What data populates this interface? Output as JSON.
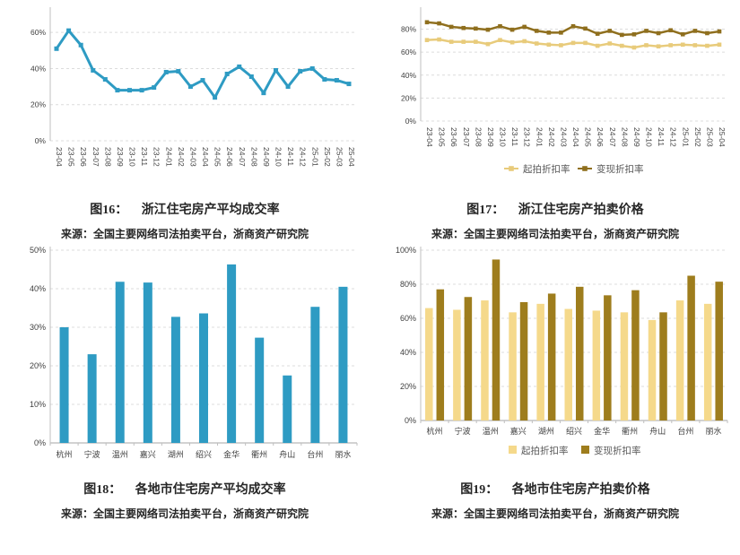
{
  "figures": [
    {
      "caption_label": "图16：",
      "caption_title": "浙江住宅房产平均成交率",
      "source": "来源：全国主要网络司法拍卖平台，浙商资产研究院"
    },
    {
      "caption_label": "图17：",
      "caption_title": "浙江住宅房产拍卖价格",
      "source": "来源：全国主要网络司法拍卖平台，浙商资产研究院"
    },
    {
      "caption_label": "图18：",
      "caption_title": "各地市住宅房产平均成交率",
      "source": "来源：全国主要网络司法拍卖平台，浙商资产研究院"
    },
    {
      "caption_label": "图19：",
      "caption_title": "各地市住宅房产拍卖价格",
      "source": "来源：全国主要网络司法拍卖平台，浙商资产研究院"
    }
  ],
  "colors": {
    "teal": "#2E9BC3",
    "light_gold_line": "#E8CB7B",
    "dark_gold_line": "#8F6F1E",
    "light_gold_bar": "#F5D98B",
    "dark_gold_bar": "#9E7D1D",
    "gridline": "#DCDCDC",
    "axis": "#BFBFBF",
    "tick_text": "#404040",
    "legend_text": "#595959"
  },
  "chart_data": [
    {
      "type": "line",
      "title": "浙江住宅房产平均成交率",
      "x": [
        "23-04",
        "23-05",
        "23-06",
        "23-07",
        "23-08",
        "23-09",
        "23-10",
        "23-11",
        "23-12",
        "24-01",
        "24-02",
        "24-03",
        "24-04",
        "24-05",
        "24-06",
        "24-07",
        "24-08",
        "24-09",
        "24-10",
        "24-11",
        "24-12",
        "25-01",
        "25-02",
        "25-03",
        "25-04"
      ],
      "series": [
        {
          "name": "平均成交率",
          "color": "#2E9BC3",
          "values": [
            51,
            61,
            53,
            39,
            34,
            28,
            28,
            28,
            29.5,
            38,
            38.5,
            30,
            33.5,
            24,
            37,
            41,
            35.5,
            26.5,
            39,
            30,
            38.5,
            40,
            34,
            33.5,
            31.5
          ]
        }
      ],
      "ylabel": "",
      "xlabel": "",
      "ylim": [
        0,
        72
      ],
      "yticks": [
        0,
        20,
        40,
        60
      ],
      "grid": true,
      "legend": false
    },
    {
      "type": "line",
      "title": "浙江住宅房产拍卖价格",
      "x": [
        "23-04",
        "23-05",
        "23-06",
        "23-07",
        "23-08",
        "23-09",
        "23-10",
        "23-11",
        "23-12",
        "24-01",
        "24-02",
        "24-03",
        "24-04",
        "24-05",
        "24-06",
        "24-07",
        "24-08",
        "24-09",
        "24-10",
        "24-11",
        "24-12",
        "25-01",
        "25-02",
        "25-03",
        "25-04"
      ],
      "series": [
        {
          "name": "起拍折扣率",
          "color": "#E8CB7B",
          "values": [
            70.5,
            71,
            69,
            69,
            69,
            67,
            70.5,
            68.5,
            69.5,
            67.5,
            66.5,
            66,
            68,
            68,
            65.5,
            67.5,
            65.5,
            64,
            66,
            65,
            66,
            66.5,
            66,
            65.5,
            66.5
          ]
        },
        {
          "name": "变现折扣率",
          "color": "#8F6F1E",
          "values": [
            86,
            85,
            82,
            81,
            80.5,
            79.5,
            82.5,
            79.5,
            82,
            78.5,
            77,
            77,
            82.5,
            80.5,
            76,
            78.5,
            75,
            75.5,
            78.5,
            76.5,
            79,
            75.5,
            78.5,
            76.5,
            78
          ]
        }
      ],
      "ylabel": "",
      "xlabel": "",
      "ylim": [
        0,
        96
      ],
      "yticks": [
        0,
        20,
        40,
        60,
        80
      ],
      "grid": true,
      "legend": true,
      "legend_position": "bottom"
    },
    {
      "type": "bar",
      "title": "各地市住宅房产平均成交率",
      "categories": [
        "杭州",
        "宁波",
        "温州",
        "嘉兴",
        "湖州",
        "绍兴",
        "金华",
        "衢州",
        "舟山",
        "台州",
        "丽水"
      ],
      "series": [
        {
          "name": "平均成交率",
          "color": "#2E9BC3",
          "values": [
            30,
            23,
            41.8,
            41.6,
            32.7,
            33.6,
            46.3,
            27.3,
            17.5,
            35.3,
            40.5
          ]
        }
      ],
      "ylabel": "",
      "xlabel": "",
      "ylim": [
        0,
        50
      ],
      "yticks": [
        0,
        10,
        20,
        30,
        40,
        50
      ],
      "grid": true,
      "legend": false
    },
    {
      "type": "bar",
      "title": "各地市住宅房产拍卖价格",
      "categories": [
        "杭州",
        "宁波",
        "温州",
        "嘉兴",
        "湖州",
        "绍兴",
        "金华",
        "衢州",
        "舟山",
        "台州",
        "丽水"
      ],
      "series": [
        {
          "name": "起拍折扣率",
          "color": "#F5D98B",
          "values": [
            66,
            65,
            70.5,
            63.5,
            68.5,
            65.5,
            64.5,
            63.5,
            59,
            70.5,
            68.5
          ]
        },
        {
          "name": "变现折扣率",
          "color": "#9E7D1D",
          "values": [
            77,
            72.5,
            94.5,
            69.5,
            74.5,
            78.5,
            73.5,
            76.5,
            63.5,
            85,
            81.5
          ]
        }
      ],
      "ylabel": "",
      "xlabel": "",
      "ylim": [
        0,
        100
      ],
      "yticks": [
        0,
        20,
        40,
        60,
        80,
        100
      ],
      "grid": true,
      "legend": true,
      "legend_position": "bottom"
    }
  ]
}
